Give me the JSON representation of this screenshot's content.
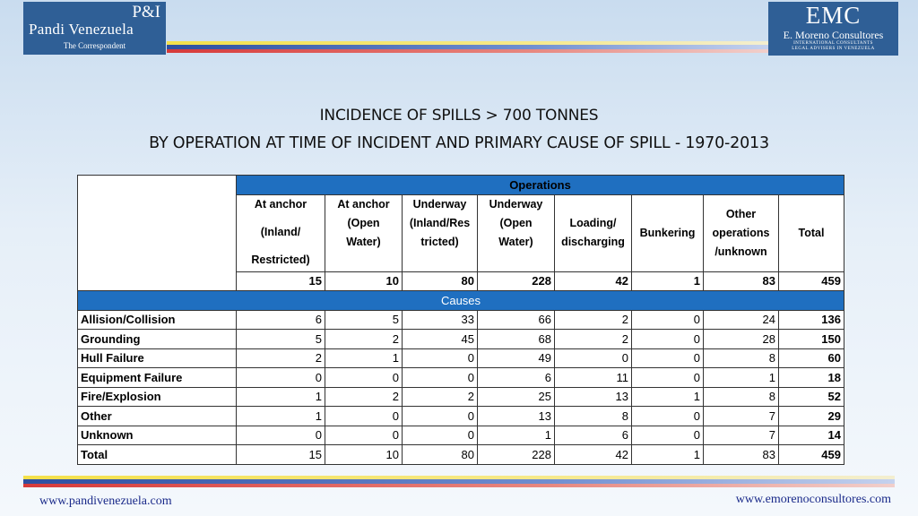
{
  "logos": {
    "left": {
      "tag": "P&I",
      "name": "Pandi Venezuela",
      "subtitle": "The Correspondent"
    },
    "right": {
      "tag": "EMC",
      "name": "E. Moreno Consultores",
      "line1": "INTERNATIONAL CONSULTANTS",
      "line2": "LEGAL ADVISERS IN VENEZUELA"
    }
  },
  "title": {
    "line1": "INCIDENCE OF SPILLS > 700 TONNES",
    "line2": "BY OPERATION AT TIME OF INCIDENT AND PRIMARY CAUSE OF SPILL - 1970-2013"
  },
  "table": {
    "operations_label": "Operations",
    "causes_label": "Causes",
    "columns": [
      {
        "l1": "At anchor",
        "l2": "(Inland/",
        "l3": "Restricted)"
      },
      {
        "l1": "At anchor",
        "l2": "(Open",
        "l3": "Water)"
      },
      {
        "l1": "Underway",
        "l2": "(Inland/Res",
        "l3": "tricted)"
      },
      {
        "l1": "Underway",
        "l2": "(Open",
        "l3": "Water)"
      },
      {
        "l1": "Loading/",
        "l2": "discharging"
      },
      {
        "l1": "Bunkering"
      },
      {
        "l1": "Other",
        "l2": "operations",
        "l3": "/unknown"
      },
      {
        "l1": "Total"
      }
    ],
    "ops_totals": [
      "15",
      "10",
      "80",
      "228",
      "42",
      "1",
      "83",
      "459"
    ],
    "rows": [
      {
        "label": "Allision/Collision",
        "v": [
          "6",
          "5",
          "33",
          "66",
          "2",
          "0",
          "24",
          "136"
        ]
      },
      {
        "label": "Grounding",
        "v": [
          "5",
          "2",
          "45",
          "68",
          "2",
          "0",
          "28",
          "150"
        ]
      },
      {
        "label": "Hull Failure",
        "v": [
          "2",
          "1",
          "0",
          "49",
          "0",
          "0",
          "8",
          "60"
        ]
      },
      {
        "label": "Equipment Failure",
        "v": [
          "0",
          "0",
          "0",
          "6",
          "11",
          "0",
          "1",
          "18"
        ]
      },
      {
        "label": "Fire/Explosion",
        "v": [
          "1",
          "2",
          "2",
          "25",
          "13",
          "1",
          "8",
          "52"
        ]
      },
      {
        "label": "Other",
        "v": [
          "1",
          "0",
          "0",
          "13",
          "8",
          "0",
          "7",
          "29"
        ]
      },
      {
        "label": "Unknown",
        "v": [
          "0",
          "0",
          "0",
          "1",
          "6",
          "0",
          "7",
          "14"
        ]
      },
      {
        "label": "Total",
        "v": [
          "15",
          "10",
          "80",
          "228",
          "42",
          "1",
          "83",
          "459"
        ]
      }
    ]
  },
  "footer": {
    "left_url": "www.pandivenezuela.com",
    "right_url": "www.emorenoconsultores.com"
  }
}
